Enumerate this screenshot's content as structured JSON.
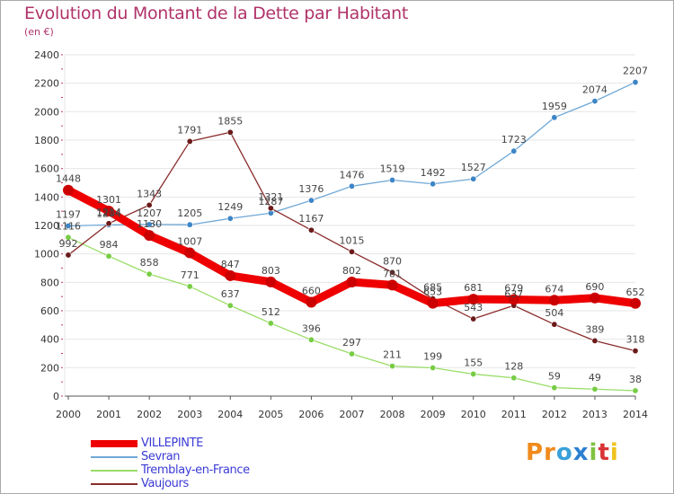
{
  "header": {
    "title": "Evolution du Montant de la Dette par Habitant",
    "subtitle": "(en €)"
  },
  "logo": {
    "letters": [
      "P",
      "r",
      "o",
      "x",
      "i",
      "t",
      "i"
    ],
    "colors": [
      "#f08a1c",
      "#f08a1c",
      "#3aa1d8",
      "#2c7fd1",
      "#7fc241",
      "#d93434",
      "#f0c21c"
    ]
  },
  "chart_data": {
    "type": "line",
    "title": "Evolution du Montant de la Dette par Habitant",
    "subtitle": "(en €)",
    "xlabel": "",
    "ylabel": "",
    "x": [
      "2000",
      "2001",
      "2002",
      "2003",
      "2004",
      "2005",
      "2006",
      "2007",
      "2008",
      "2009",
      "2010",
      "2011",
      "2012",
      "2013",
      "2014"
    ],
    "ylim": [
      0,
      2400
    ],
    "yticks": [
      0,
      200,
      400,
      600,
      800,
      1000,
      1200,
      1400,
      1600,
      1800,
      2000,
      2200,
      2400
    ],
    "grid": "horizontal",
    "legend_position": "bottom-left",
    "series": [
      {
        "name": "VILLEPINTE",
        "color": "#ee0000",
        "marker": "#cc0000",
        "weight": "bold",
        "values": [
          1448,
          1301,
          1130,
          1007,
          847,
          803,
          660,
          802,
          781,
          653,
          681,
          679,
          674,
          690,
          652
        ]
      },
      {
        "name": "Sevran",
        "color": "#6fa8d6",
        "marker": "#3d85c6",
        "weight": "thin",
        "values": [
          1197,
          1204,
          1207,
          1205,
          1249,
          1287,
          1376,
          1476,
          1519,
          1492,
          1527,
          1723,
          1959,
          2074,
          2207
        ]
      },
      {
        "name": "Tremblay-en-France",
        "color": "#99dd66",
        "marker": "#77cc44",
        "weight": "thin",
        "values": [
          1116,
          984,
          858,
          771,
          637,
          512,
          396,
          297,
          211,
          199,
          155,
          128,
          59,
          49,
          38
        ]
      },
      {
        "name": "Vaujours",
        "color": "#8b2c2c",
        "marker": "#6b1a1a",
        "weight": "thin",
        "values": [
          992,
          1214,
          1343,
          1791,
          1855,
          1321,
          1167,
          1015,
          870,
          685,
          543,
          637,
          504,
          389,
          318
        ]
      }
    ]
  }
}
